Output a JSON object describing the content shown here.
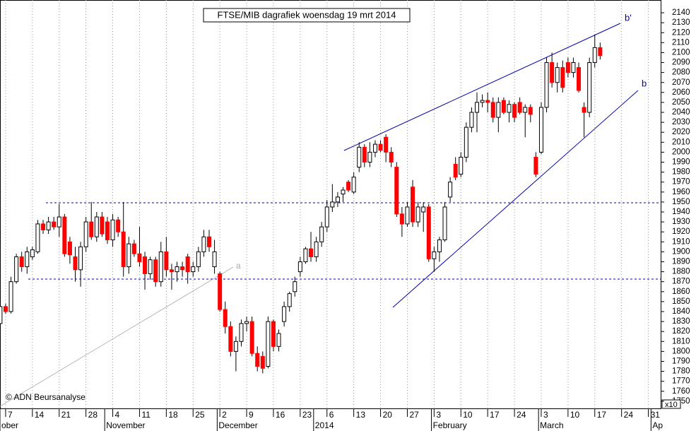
{
  "chart_data": {
    "type": "candlestick",
    "title": "FTSE/MIB dagrafiek woensdag 19 mrt 2014",
    "copyright": "© ADN Beursanalyse",
    "axis_multiplier": "x10",
    "annotations": [
      "b'",
      "b",
      "a"
    ],
    "up_color": "#ffffff",
    "down_color": "#ff0000",
    "x": [
      -1,
      0,
      1,
      2,
      3,
      4,
      5,
      6,
      7,
      8,
      9,
      10,
      11,
      12,
      13,
      14,
      15,
      16,
      17,
      18,
      19,
      20,
      21,
      22,
      23,
      24,
      25,
      26,
      27,
      28,
      29,
      30,
      31,
      32,
      33,
      34,
      35,
      36,
      37,
      38,
      39,
      40,
      41,
      42,
      43,
      44,
      45,
      46,
      47,
      48,
      49,
      50,
      51,
      52,
      53,
      54,
      55,
      56,
      57,
      58,
      59,
      60,
      61,
      62,
      63,
      64,
      65,
      66,
      67,
      68,
      69,
      70,
      71,
      72,
      73,
      74,
      75,
      76,
      77,
      78,
      79,
      80,
      81,
      82,
      83,
      84,
      85,
      86,
      87,
      88,
      89,
      90,
      91,
      92,
      93,
      94,
      95,
      96,
      97,
      98,
      99,
      100,
      101,
      102,
      103,
      104,
      105,
      106,
      107,
      108,
      109,
      110,
      111
    ],
    "open": [
      1828,
      1845,
      1840,
      1870,
      1895,
      1885,
      1895,
      1900,
      1928,
      1922,
      1930,
      1925,
      1935,
      1910,
      1895,
      1882,
      1905,
      1930,
      1915,
      1935,
      1930,
      1912,
      1932,
      1920,
      1885,
      1908,
      1898,
      1895,
      1878,
      1892,
      1870,
      1900,
      1882,
      1880,
      1885,
      1895,
      1880,
      1885,
      1900,
      1915,
      1885,
      1878,
      1842,
      1825,
      1800,
      1810,
      1828,
      1830,
      1798,
      1795,
      1785,
      1830,
      1805,
      1830,
      1845,
      1860,
      1880,
      1890,
      1903,
      1895,
      1910,
      1925,
      1945,
      1950,
      1958,
      1970,
      1960,
      1985,
      2005,
      1990,
      2000,
      2008,
      2015,
      2000,
      1985,
      1938,
      1928,
      1965,
      1930,
      1940,
      1945,
      1893,
      1900,
      1912,
      1955,
      1988,
      1978,
      1995,
      2025,
      2040,
      2050,
      2052,
      2050,
      2035,
      2052,
      2040,
      2048,
      2050,
      2040,
      2045,
      1995,
      2000,
      2045,
      2090,
      2070,
      2085,
      2090,
      2080,
      2085,
      2045,
      2040,
      2090,
      2105
    ],
    "high": [
      1850,
      1848,
      1875,
      1898,
      1900,
      1905,
      1905,
      1932,
      1932,
      1935,
      1935,
      1948,
      1938,
      1915,
      1905,
      1910,
      1935,
      1950,
      1940,
      1940,
      1935,
      1938,
      1935,
      1950,
      1915,
      1912,
      1925,
      1900,
      1895,
      1895,
      1910,
      1915,
      1888,
      1890,
      1890,
      1898,
      1890,
      1905,
      1922,
      1922,
      1912,
      1880,
      1850,
      1830,
      1815,
      1832,
      1835,
      1835,
      1805,
      1800,
      1835,
      1832,
      1822,
      1850,
      1860,
      1875,
      1895,
      1905,
      1920,
      1915,
      1930,
      1952,
      1968,
      1960,
      1965,
      1972,
      1980,
      2010,
      2008,
      2010,
      2012,
      2012,
      2018,
      2005,
      1990,
      1945,
      1950,
      1972,
      1950,
      1950,
      1948,
      1905,
      1915,
      1950,
      1975,
      1995,
      2000,
      2030,
      2045,
      2060,
      2058,
      2060,
      2055,
      2055,
      2055,
      2052,
      2050,
      2055,
      2048,
      2048,
      2000,
      2050,
      2095,
      2100,
      2090,
      2092,
      2095,
      2095,
      2090,
      2050,
      2095,
      2118,
      2110
    ],
    "low": [
      1820,
      1838,
      1838,
      1868,
      1880,
      1878,
      1892,
      1898,
      1918,
      1918,
      1922,
      1915,
      1895,
      1888,
      1870,
      1865,
      1900,
      1912,
      1910,
      1915,
      1908,
      1905,
      1915,
      1875,
      1878,
      1895,
      1885,
      1862,
      1872,
      1865,
      1865,
      1875,
      1862,
      1870,
      1875,
      1868,
      1875,
      1880,
      1895,
      1900,
      1878,
      1840,
      1818,
      1795,
      1780,
      1805,
      1820,
      1795,
      1780,
      1778,
      1783,
      1800,
      1800,
      1825,
      1840,
      1855,
      1875,
      1888,
      1890,
      1890,
      1905,
      1920,
      1940,
      1945,
      1950,
      1960,
      1958,
      1980,
      1985,
      1985,
      1995,
      2000,
      1990,
      1985,
      1935,
      1915,
      1925,
      1925,
      1925,
      1920,
      1890,
      1880,
      1890,
      1910,
      1950,
      1972,
      1975,
      1990,
      2020,
      2020,
      2045,
      2040,
      2030,
      2020,
      2038,
      2030,
      2030,
      2038,
      2015,
      2030,
      1975,
      1998,
      2040,
      2065,
      2060,
      2060,
      2075,
      2075,
      2060,
      2015,
      2035,
      2085,
      2093
    ],
    "close": [
      1845,
      1840,
      1870,
      1895,
      1885,
      1900,
      1902,
      1928,
      1922,
      1930,
      1925,
      1935,
      1898,
      1897,
      1882,
      1905,
      1930,
      1915,
      1935,
      1918,
      1912,
      1932,
      1920,
      1885,
      1908,
      1898,
      1890,
      1878,
      1892,
      1870,
      1900,
      1882,
      1880,
      1885,
      1882,
      1880,
      1885,
      1900,
      1915,
      1905,
      1900,
      1842,
      1825,
      1800,
      1810,
      1828,
      1830,
      1798,
      1785,
      1783,
      1830,
      1805,
      1818,
      1845,
      1858,
      1870,
      1890,
      1903,
      1895,
      1910,
      1925,
      1945,
      1950,
      1955,
      1962,
      1962,
      1975,
      2005,
      1990,
      2000,
      2008,
      2002,
      2000,
      1990,
      1938,
      1928,
      1945,
      1930,
      1945,
      1945,
      1893,
      1900,
      1912,
      1945,
      1970,
      1975,
      1995,
      2025,
      2040,
      2050,
      2052,
      2050,
      2035,
      2050,
      2040,
      2048,
      2035,
      2040,
      2045,
      2038,
      1978,
      2045,
      2090,
      2070,
      2085,
      2065,
      2080,
      2090,
      2062,
      2040,
      2090,
      2105,
      2097
    ],
    "xlim": [
      -1.05,
      122.3
    ],
    "ylim": [
      1742.8,
      2152.8
    ],
    "yticks": [
      1750,
      1760,
      1770,
      1780,
      1790,
      1800,
      1810,
      1820,
      1830,
      1840,
      1850,
      1860,
      1870,
      1880,
      1890,
      1900,
      1910,
      1920,
      1930,
      1940,
      1950,
      1960,
      1970,
      1980,
      1990,
      2000,
      2010,
      2020,
      2030,
      2040,
      2050,
      2060,
      2070,
      2080,
      2090,
      2100,
      2110,
      2120,
      2130,
      2140
    ],
    "xticks": [
      {
        "value": 0,
        "label": "7"
      },
      {
        "value": 5,
        "label": "14"
      },
      {
        "value": 10,
        "label": "21"
      },
      {
        "value": 15,
        "label": "28"
      },
      {
        "value": 20,
        "label": "4"
      },
      {
        "value": 25,
        "label": "11"
      },
      {
        "value": 30,
        "label": "18"
      },
      {
        "value": 35,
        "label": "25"
      },
      {
        "value": 40,
        "label": "2"
      },
      {
        "value": 45,
        "label": "9"
      },
      {
        "value": 50,
        "label": "16"
      },
      {
        "value": 55,
        "label": "23"
      },
      {
        "value": 60,
        "label": "6"
      },
      {
        "value": 65,
        "label": "13"
      },
      {
        "value": 70,
        "label": "20"
      },
      {
        "value": 75,
        "label": "27"
      },
      {
        "value": 80,
        "label": "3"
      },
      {
        "value": 85,
        "label": "10"
      },
      {
        "value": 90,
        "label": "17"
      },
      {
        "value": 95,
        "label": "24"
      },
      {
        "value": 100,
        "label": "3"
      },
      {
        "value": 105,
        "label": "10"
      },
      {
        "value": 110,
        "label": "17"
      },
      {
        "value": 115,
        "label": "24"
      },
      {
        "value": 120,
        "label": "31"
      }
    ],
    "month_ticks": [
      {
        "value": -1.05,
        "label": "ober"
      },
      {
        "value": 18.5,
        "label": "November"
      },
      {
        "value": 39.5,
        "label": "December"
      },
      {
        "value": 57.5,
        "label": "2014"
      },
      {
        "value": 79.5,
        "label": "February"
      },
      {
        "value": 99.5,
        "label": "March"
      },
      {
        "value": 120.5,
        "label": "Ap"
      }
    ],
    "grid": true
  }
}
